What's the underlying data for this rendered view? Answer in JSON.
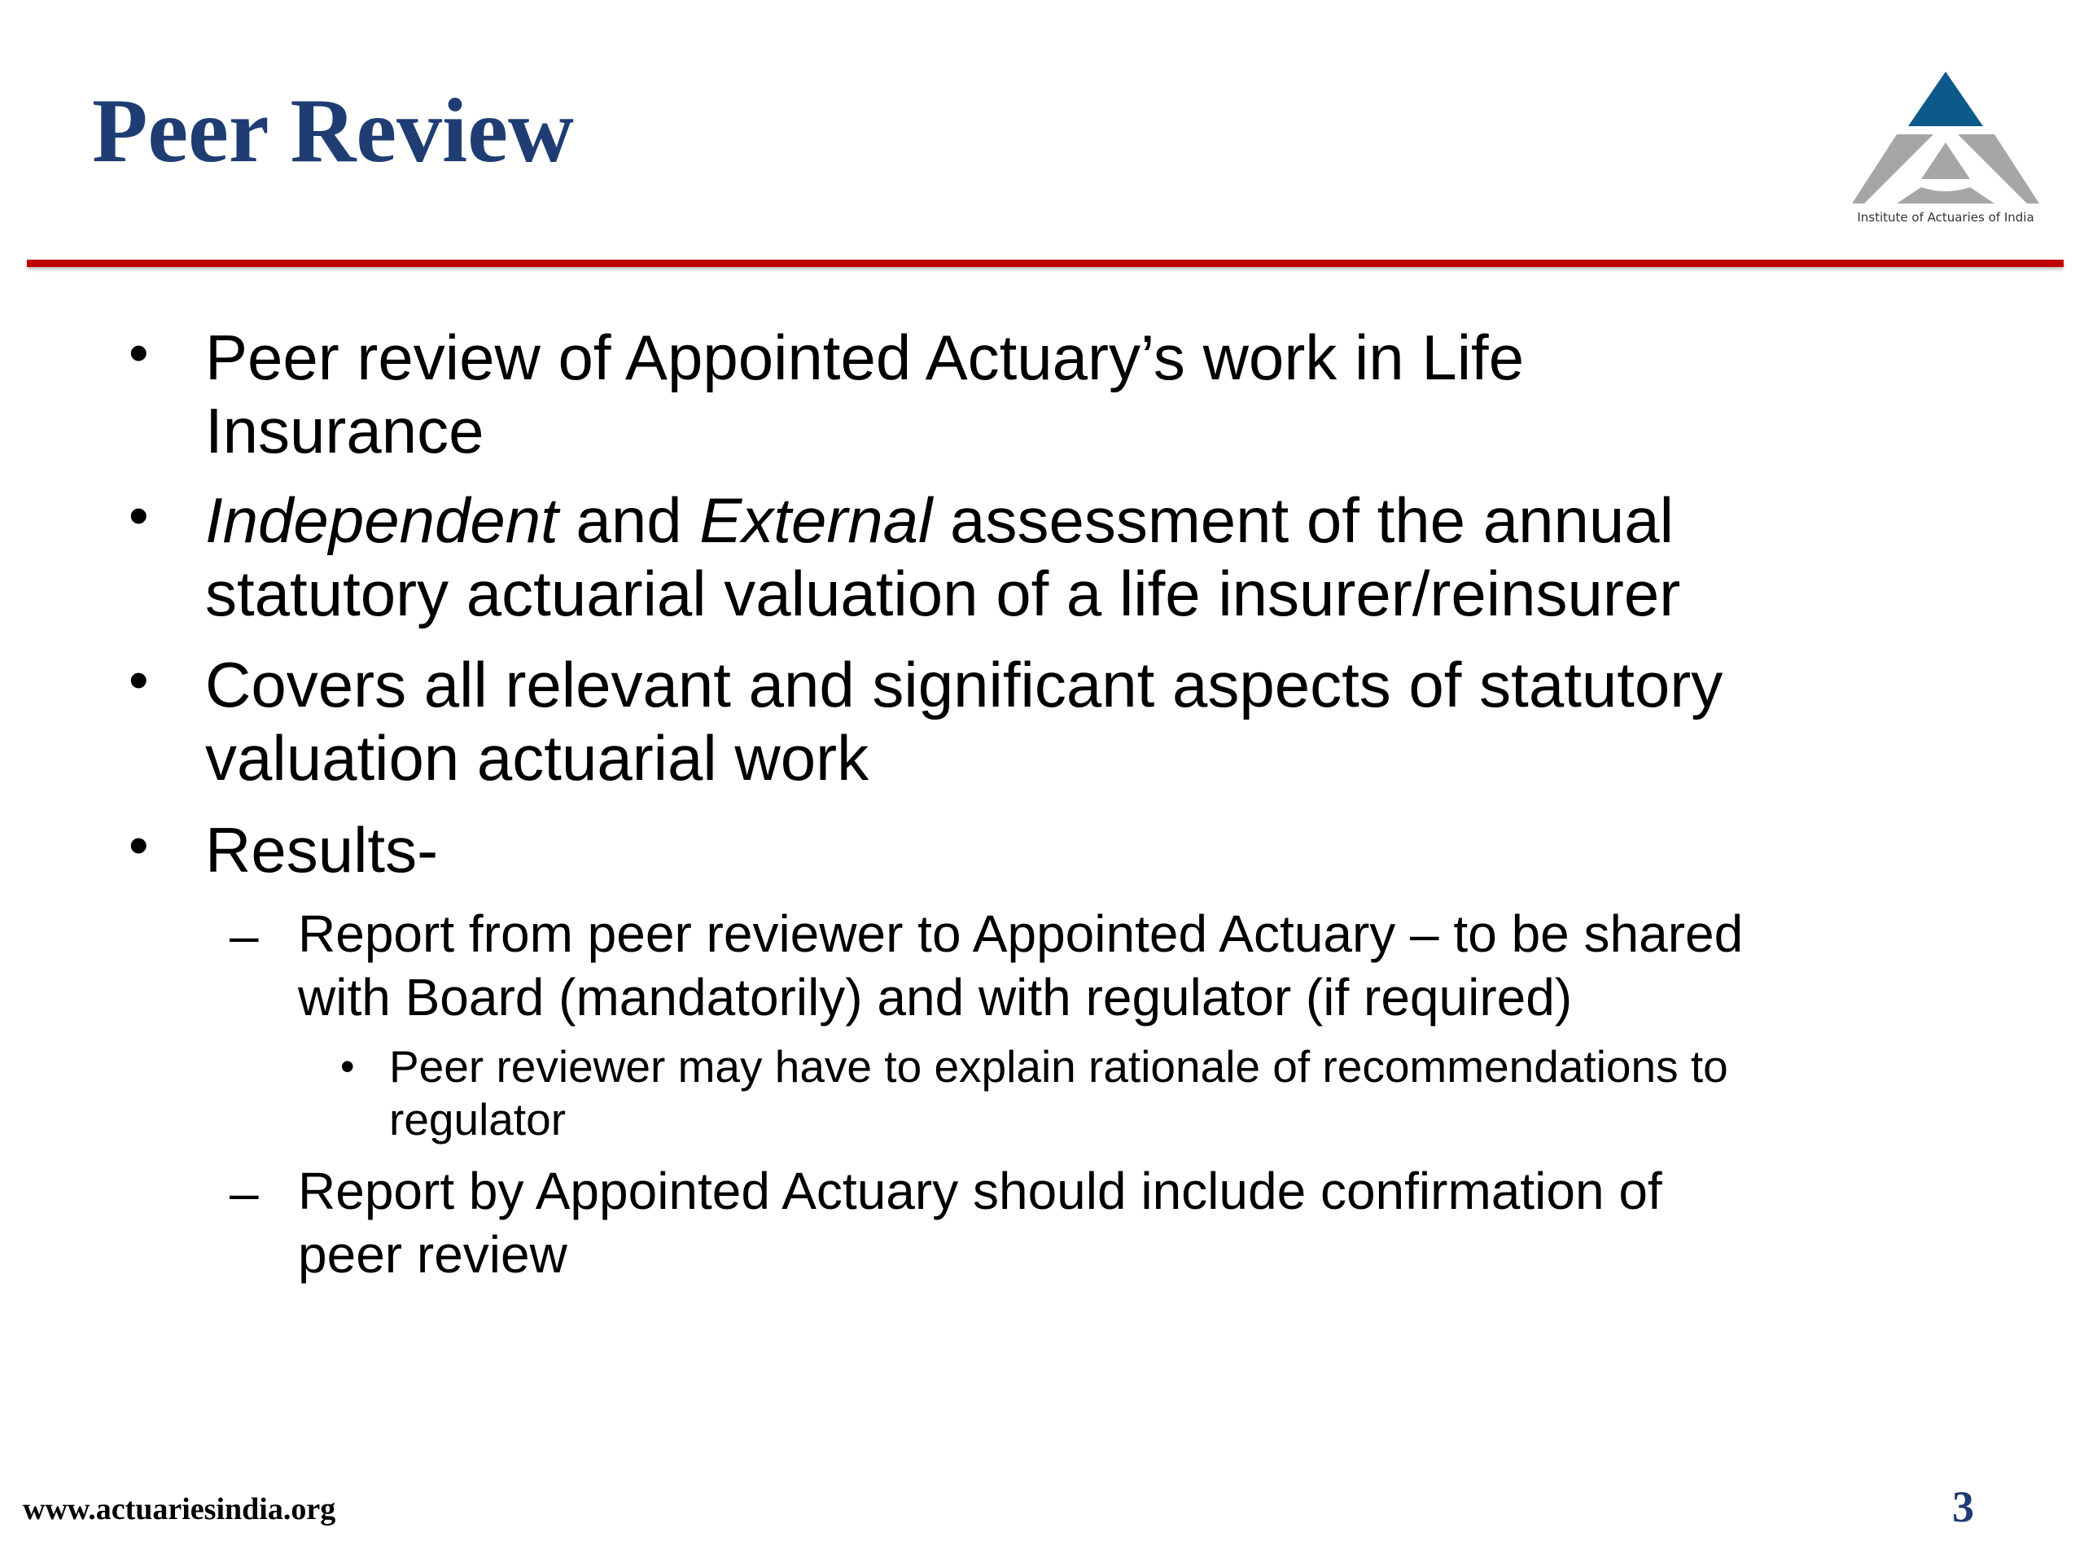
{
  "slide": {
    "title": "Peer Review",
    "logo_text": "Institute of Actuaries of India",
    "colors": {
      "title": "#1f3d73",
      "rule": "#c00000",
      "logo_blue": "#0d5a8a",
      "logo_grey": "#a6a6a6"
    },
    "bullets": [
      {
        "lines": [
          "Peer review of Appointed Actuary’s work in Life",
          "Insurance"
        ]
      },
      {
        "line1": {
          "italic1": "Independent",
          "mid": " and ",
          "italic2": "External",
          "rest": " assessment of the annual"
        },
        "line2": "statutory actuarial valuation of a life insurer/reinsurer"
      },
      {
        "lines": [
          "Covers all relevant and significant aspects of statutory",
          "valuation actuarial work"
        ]
      },
      {
        "lines": [
          "Results-"
        ]
      }
    ],
    "sub_bullets": [
      {
        "lines": [
          "Report from peer reviewer to Appointed Actuary – to be shared",
          "with Board (mandatorily) and with regulator (if required)"
        ],
        "sub": {
          "lines": [
            "Peer reviewer may have to explain rationale of recommendations to",
            "regulator"
          ]
        }
      },
      {
        "lines": [
          "Report by Appointed Actuary should include confirmation of",
          "peer review"
        ]
      }
    ],
    "bullet_glyph": "•",
    "dash_glyph": "–",
    "footer_url": "www.actuariesindia.org",
    "page_number": "3"
  }
}
